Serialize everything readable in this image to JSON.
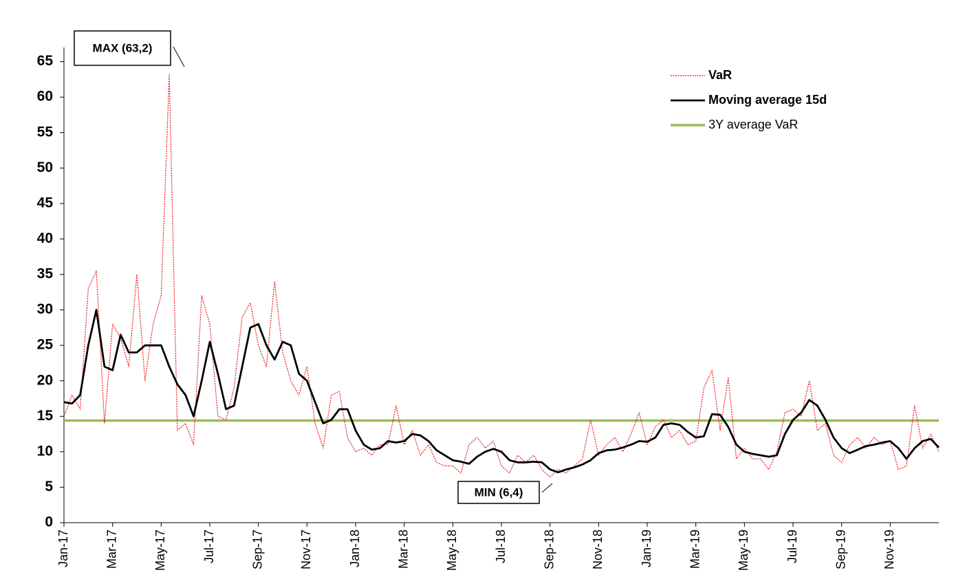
{
  "chart_data": {
    "type": "line",
    "categories": [
      "Jan-17",
      null,
      null,
      null,
      null,
      null,
      "Mar-17",
      null,
      null,
      null,
      null,
      null,
      "May-17",
      null,
      null,
      null,
      null,
      null,
      "Jul-17",
      null,
      null,
      null,
      null,
      null,
      "Sep-17",
      null,
      null,
      null,
      null,
      null,
      "Nov-17",
      null,
      null,
      null,
      null,
      null,
      "Jan-18",
      null,
      null,
      null,
      null,
      null,
      "Mar-18",
      null,
      null,
      null,
      null,
      null,
      "May-18",
      null,
      null,
      null,
      null,
      null,
      "Jul-18",
      null,
      null,
      null,
      null,
      null,
      "Sep-18",
      null,
      null,
      null,
      null,
      null,
      "Nov-18",
      null,
      null,
      null,
      null,
      null,
      "Jan-19",
      null,
      null,
      null,
      null,
      null,
      "Mar-19",
      null,
      null,
      null,
      null,
      null,
      "May-19",
      null,
      null,
      null,
      null,
      null,
      "Jul-19",
      null,
      null,
      null,
      null,
      null,
      "Sep-19",
      null,
      null,
      null,
      null,
      null,
      "Nov-19",
      null,
      null,
      null,
      null,
      null,
      null
    ],
    "series": [
      {
        "name": "VaR",
        "color": "#e8141b",
        "line_style": "dotted",
        "values": [
          15,
          18,
          16,
          33,
          35.5,
          14,
          28,
          26,
          22,
          35,
          20,
          28,
          32,
          63.2,
          13,
          14,
          11,
          32,
          28,
          15,
          14.5,
          19,
          29,
          31,
          25,
          22,
          34,
          24,
          20,
          18,
          22,
          14,
          10.5,
          18,
          18.5,
          12,
          10,
          10.5,
          9.5,
          11,
          11,
          16.5,
          11,
          13,
          9.5,
          11,
          8.5,
          8,
          8,
          7,
          11,
          12,
          10.5,
          11.5,
          8,
          7,
          9.5,
          8.5,
          9.5,
          7.5,
          6.4,
          7.5,
          7,
          8,
          9,
          14.5,
          9.5,
          11,
          12,
          10,
          12.5,
          15.5,
          11,
          13.5,
          14.5,
          12,
          13,
          11,
          11.5,
          19,
          21.5,
          13,
          20.5,
          9,
          10.5,
          9,
          9,
          7.5,
          10,
          15.5,
          16,
          15,
          20,
          13,
          14,
          9.5,
          8.5,
          11,
          12,
          10.5,
          12,
          11,
          11.5,
          7.5,
          8,
          16.5,
          10.5,
          12.5,
          10
        ]
      },
      {
        "name": "Moving average 15d",
        "color": "#000000",
        "line_style": "solid",
        "values": [
          17,
          16.8,
          18,
          25,
          30,
          22,
          21.5,
          26.5,
          24,
          24,
          25,
          25,
          25,
          22,
          19.5,
          18,
          15,
          20,
          25.5,
          21,
          16,
          16.5,
          22,
          27.5,
          28,
          25,
          23,
          25.5,
          25,
          21,
          20,
          17,
          14,
          14.5,
          16,
          16,
          13,
          11,
          10.3,
          10.5,
          11.5,
          11.3,
          11.5,
          12.5,
          12.3,
          11.5,
          10.2,
          9.5,
          8.8,
          8.6,
          8.3,
          9.3,
          10,
          10.4,
          10,
          8.8,
          8.5,
          8.5,
          8.6,
          8.5,
          7.5,
          7.1,
          7.5,
          7.8,
          8.2,
          8.8,
          9.8,
          10.2,
          10.3,
          10.6,
          11,
          11.5,
          11.4,
          12,
          13.8,
          14,
          13.8,
          12.8,
          12,
          12.2,
          15.3,
          15.2,
          13.5,
          11,
          10,
          9.7,
          9.5,
          9.3,
          9.5,
          12.5,
          14.5,
          15.5,
          17.3,
          16.5,
          14.5,
          12,
          10.5,
          9.8,
          10.3,
          10.8,
          11,
          11.3,
          11.5,
          10.5,
          9,
          10.5,
          11.5,
          11.8,
          10.6
        ]
      },
      {
        "name": "3Y average VaR",
        "color": "#9bbb59",
        "line_style": "solid",
        "value": 14.4
      }
    ],
    "ylim": [
      0,
      67
    ],
    "yticks": [
      0,
      5,
      10,
      15,
      20,
      25,
      30,
      35,
      40,
      45,
      50,
      55,
      60,
      65
    ],
    "annotations": [
      "MAX (63,2)",
      "MIN (6,4)"
    ],
    "legend": "top-right",
    "grid": false
  }
}
